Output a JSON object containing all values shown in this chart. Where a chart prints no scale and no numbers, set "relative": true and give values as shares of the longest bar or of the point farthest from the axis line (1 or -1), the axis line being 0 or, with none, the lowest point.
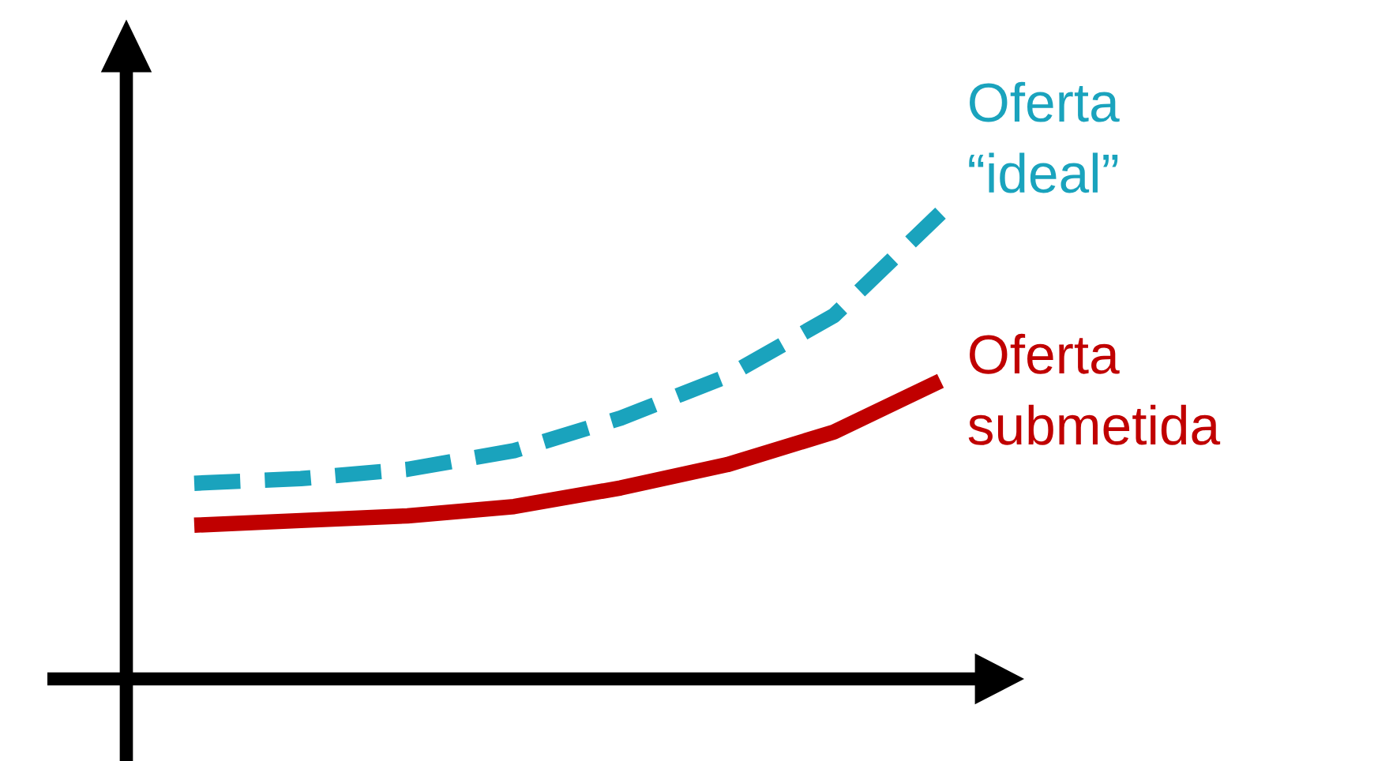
{
  "chart_data": {
    "type": "line",
    "relative": true,
    "categories": [
      null,
      null,
      null,
      null,
      null,
      null,
      null,
      null
    ],
    "series": [
      {
        "name": "Oferta “ideal”",
        "color": "#1aa3bd",
        "line_style": "dashed",
        "values": [
          0.42,
          0.43,
          0.45,
          0.49,
          0.56,
          0.65,
          0.78,
          1.0
        ]
      },
      {
        "name": "Oferta submetida",
        "color": "#c00000",
        "line_style": "solid",
        "values": [
          0.33,
          0.34,
          0.35,
          0.37,
          0.41,
          0.46,
          0.53,
          0.64
        ]
      }
    ],
    "legend": false
  }
}
